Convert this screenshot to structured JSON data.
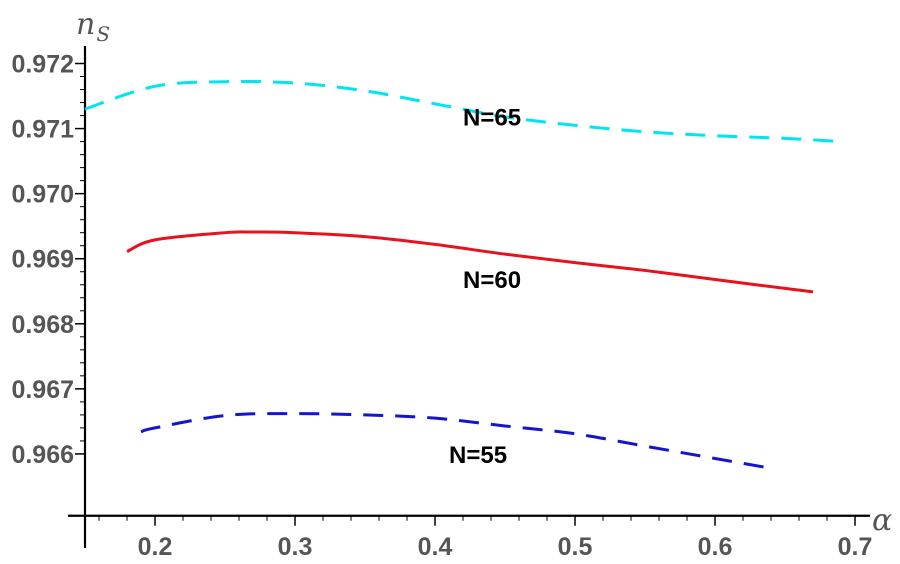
{
  "chart_data": {
    "type": "line",
    "xlabel": "α",
    "ylabel_main": "n",
    "ylabel_sub": "S",
    "xlim": [
      0.15,
      0.7
    ],
    "ylim": [
      0.965,
      0.9721
    ],
    "x_origin": 0.15,
    "y_origin": 0.96505,
    "xticks": [
      0.2,
      0.3,
      0.4,
      0.5,
      0.6,
      0.7
    ],
    "xtick_labels": [
      "0.2",
      "0.3",
      "0.4",
      "0.5",
      "0.6",
      "0.7"
    ],
    "yticks": [
      0.966,
      0.967,
      0.968,
      0.969,
      0.97,
      0.971,
      0.972
    ],
    "ytick_labels": [
      "0.966",
      "0.967",
      "0.968",
      "0.969",
      "0.970",
      "0.971",
      "0.972"
    ],
    "grid": false,
    "series": [
      {
        "name": "N=65",
        "color": "#00e5ee",
        "dash": "dashed",
        "x": [
          0.15,
          0.2,
          0.25,
          0.3,
          0.35,
          0.4,
          0.45,
          0.5,
          0.55,
          0.6,
          0.65,
          0.69
        ],
        "y": [
          0.9713,
          0.97165,
          0.97172,
          0.9717,
          0.97158,
          0.97138,
          0.97118,
          0.97105,
          0.97095,
          0.97089,
          0.97085,
          0.9708
        ],
        "label_pos": [
          0.42,
          0.97105
        ]
      },
      {
        "name": "N=60",
        "color": "#e8121e",
        "dash": "solid",
        "x": [
          0.18,
          0.2,
          0.25,
          0.27,
          0.3,
          0.35,
          0.4,
          0.45,
          0.5,
          0.55,
          0.6,
          0.67
        ],
        "y": [
          0.96911,
          0.96929,
          0.9694,
          0.96941,
          0.9694,
          0.96934,
          0.96922,
          0.96907,
          0.96894,
          0.96882,
          0.96868,
          0.96849
        ],
        "label_pos": [
          0.42,
          0.96855
        ]
      },
      {
        "name": "N=55",
        "color": "#1515cc",
        "dash": "dashed",
        "x": [
          0.19,
          0.2,
          0.25,
          0.3,
          0.35,
          0.4,
          0.45,
          0.5,
          0.55,
          0.6,
          0.64
        ],
        "y": [
          0.96634,
          0.9664,
          0.96659,
          0.96662,
          0.9666,
          0.96655,
          0.96643,
          0.96631,
          0.96612,
          0.96593,
          0.96578
        ],
        "label_pos": [
          0.41,
          0.96586
        ]
      }
    ]
  }
}
